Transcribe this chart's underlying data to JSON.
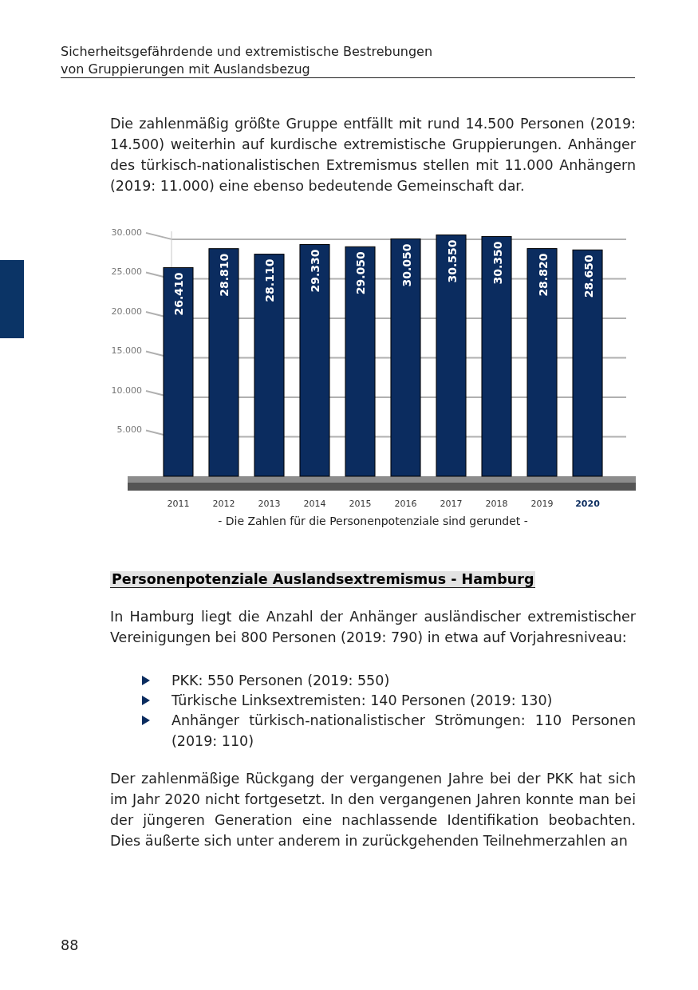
{
  "chart_data": {
    "type": "bar",
    "categories": [
      "2011",
      "2012",
      "2013",
      "2014",
      "2015",
      "2016",
      "2017",
      "2018",
      "2019",
      "2020"
    ],
    "values": [
      26410,
      28810,
      28110,
      29330,
      29050,
      30050,
      30550,
      30350,
      28820,
      28650
    ],
    "color": "#0b2c5f",
    "data_labels": true,
    "grid": "y",
    "ylim": [
      0,
      31000
    ],
    "yticks": [
      {
        "value": 5000,
        "label": "5.000"
      },
      {
        "value": 10000,
        "label": "10.000"
      },
      {
        "value": 15000,
        "label": "15.000"
      },
      {
        "value": 20000,
        "label": "20.000"
      },
      {
        "value": 25000,
        "label": "25.000"
      },
      {
        "value": 30000,
        "label": "30.000"
      }
    ],
    "value_labels": [
      "26.410",
      "28.810",
      "28.110",
      "29.330",
      "29.050",
      "30.050",
      "30.550",
      "30.350",
      "28.820",
      "28.650"
    ],
    "annotations": [
      "Sicherheitsgefährdende und extremistische Bestrebungen",
      "von Gruppierungen mit Auslandsbezug",
      "Die zahlenmäßig größte Gruppe entfällt mit rund 14.500 Personen (2019: 14.500) weiterhin auf kurdische extremistische Gruppierungen. Anhänger des türkisch-nationalistischen Extremismus stellen mit 11.000 Anhängern (2019: 11.000) eine ebenso bedeutende Gemeinschaft dar.",
      "- Die Zahlen für die Personenpotenziale sind gerundet -",
      "Personenpotenziale Auslandsextremismus - Hamburg",
      "In Hamburg liegt die Anzahl der Anhänger ausländischer extremistischer Vereinigungen bei 800 Personen (2019: 790) in etwa auf Vorjahresniveau:",
      "PKK: 550 Personen (2019: 550)",
      "Türkische Linksextremisten: 140 Personen (2019: 130)",
      "Anhänger türkisch-nationalistischer Strömungen: 110 Personen (2019: 110)",
      "Der zahlenmäßige Rückgang der vergangenen Jahre bei der PKK hat sich im Jahr 2020 nicht fortgesetzt. In den vergangenen Jahren konnte man bei der jüngeren Generation eine nachlassende Identifikation beobachten. Dies äußerte sich unter anderem in zurückgehenden Teilnehmerzahlen an",
      "88"
    ]
  }
}
